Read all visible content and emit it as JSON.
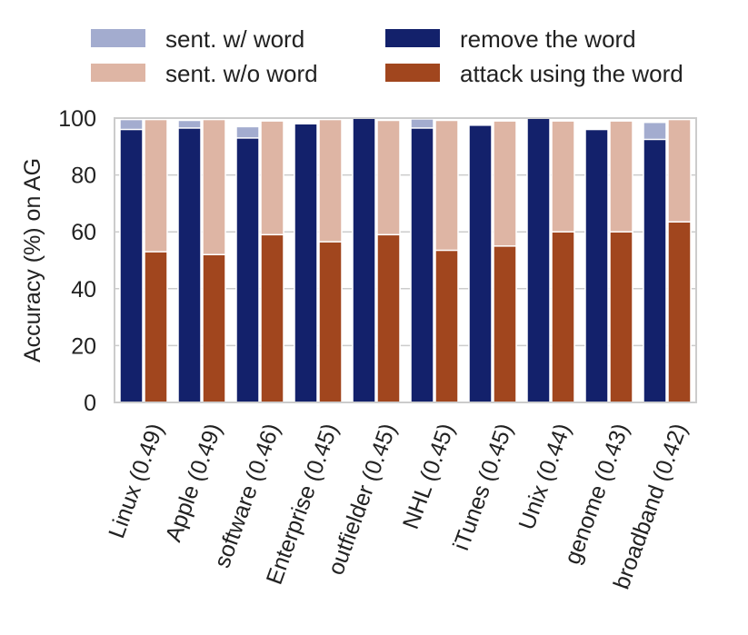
{
  "chart_data": {
    "type": "bar",
    "ylabel": "Accuracy (%) on AG",
    "xlabel": "",
    "ylim": [
      0,
      100
    ],
    "yticks": [
      0,
      20,
      40,
      60,
      80,
      100
    ],
    "grid": "y",
    "legend_position": "top",
    "categories": [
      "Linux (0.49)",
      "Apple (0.49)",
      "software (0.46)",
      "Enterprise (0.45)",
      "outfielder (0.45)",
      "NHL (0.45)",
      "iTunes (0.45)",
      "Unix (0.44)",
      "genome (0.43)",
      "broadband (0.42)"
    ],
    "series": [
      {
        "name": "sent. w/ word",
        "color": "#a3accf",
        "group": "left",
        "layer": "back",
        "values": [
          99.5,
          99.2,
          97.0,
          98.5,
          100,
          99.7,
          98.0,
          100,
          96.0,
          98.5
        ]
      },
      {
        "name": "remove the word",
        "color": "#13216b",
        "group": "left",
        "layer": "front",
        "values": [
          96.0,
          96.5,
          93.0,
          98.0,
          100,
          96.5,
          97.5,
          100,
          96.0,
          92.5
        ]
      },
      {
        "name": "sent. w/o word",
        "color": "#deb5a4",
        "group": "right",
        "layer": "back",
        "values": [
          99.5,
          99.5,
          99.0,
          99.5,
          99.2,
          99.2,
          99.0,
          99.0,
          99.0,
          99.5
        ]
      },
      {
        "name": "attack using the word",
        "color": "#a1461e",
        "group": "right",
        "layer": "front",
        "values": [
          53.0,
          52.0,
          59.0,
          56.5,
          59.0,
          53.5,
          55.0,
          60.0,
          60.0,
          63.5
        ]
      }
    ]
  }
}
